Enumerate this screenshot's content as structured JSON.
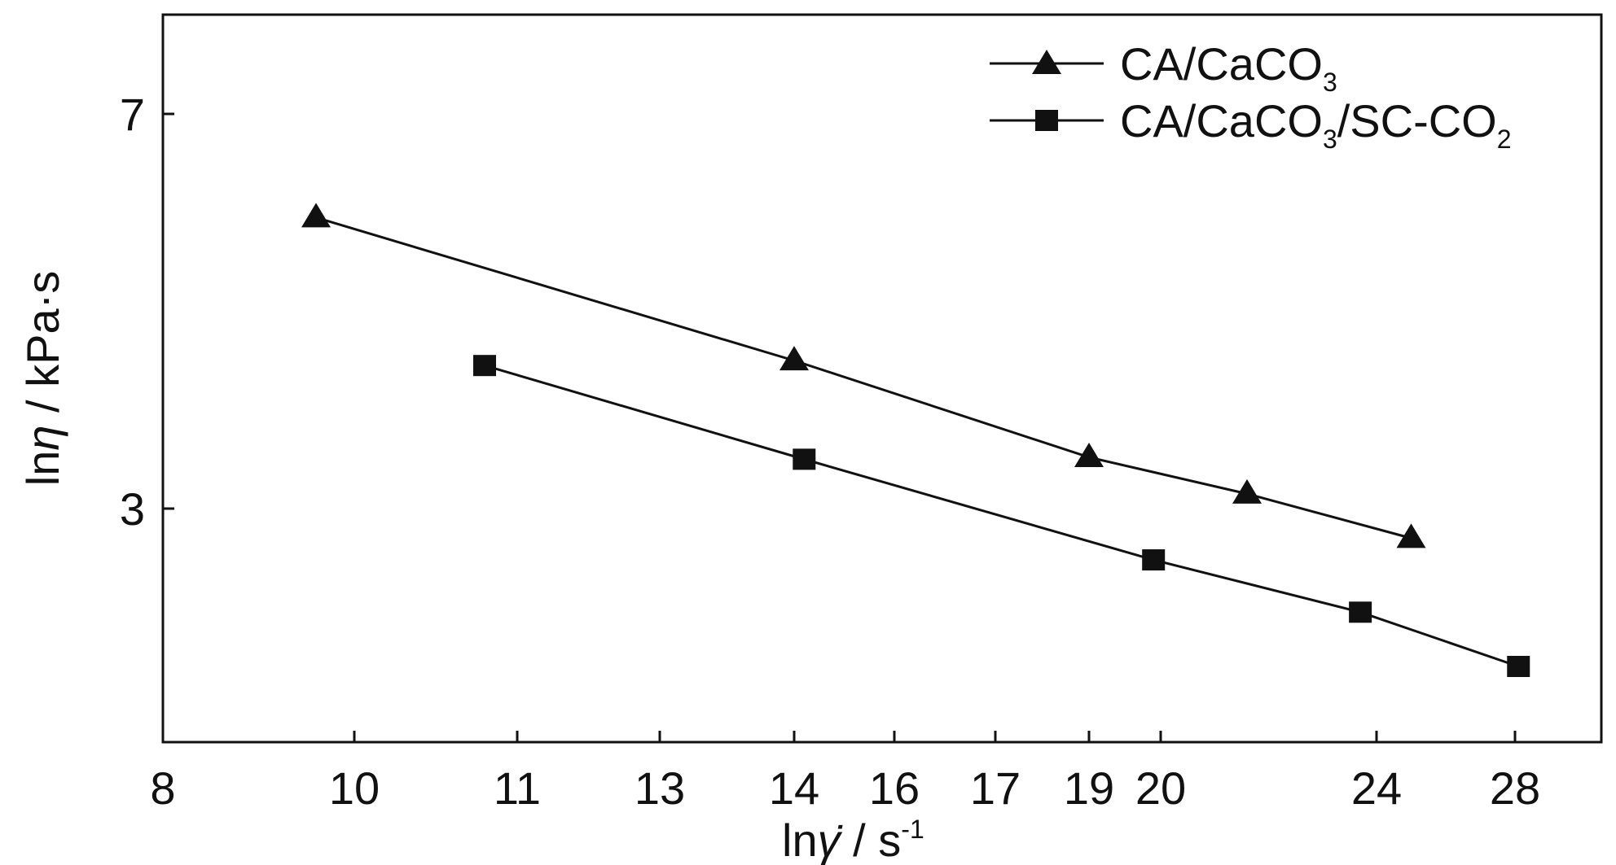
{
  "chart_data": {
    "type": "line",
    "xlabel": {
      "prefix": "ln",
      "symbol": "γ̇",
      "unit": " / s",
      "exp": "-1"
    },
    "ylabel": {
      "prefix": "ln",
      "symbol": "η",
      "unit": " / kPa·s"
    },
    "x_ticks": [
      "8",
      "10",
      "11",
      "13",
      "14",
      "16",
      "17",
      "19",
      "20",
      "24",
      "28"
    ],
    "y_ticks": [
      "7",
      "3"
    ],
    "grid": false,
    "legend_position": "top-right",
    "series": [
      {
        "name": {
          "a": "CA/CaCO",
          "a_sub": "3"
        },
        "marker": "triangle",
        "points": [
          {
            "x": 9.6,
            "y": 5.95
          },
          {
            "x": 14.0,
            "y": 4.5
          },
          {
            "x": 19.0,
            "y": 3.52
          },
          {
            "x": 21.6,
            "y": 3.15
          },
          {
            "x": 25.0,
            "y": 2.7
          }
        ]
      },
      {
        "name": {
          "a": "CA/CaCO",
          "a_sub": "3",
          "b": "/SC-CO",
          "b_sub": "2"
        },
        "marker": "square",
        "points": [
          {
            "x": 10.8,
            "y": 4.45
          },
          {
            "x": 14.2,
            "y": 3.5
          },
          {
            "x": 19.9,
            "y": 2.48
          },
          {
            "x": 23.7,
            "y": 1.95
          },
          {
            "x": 28.1,
            "y": 1.4
          }
        ]
      }
    ]
  }
}
